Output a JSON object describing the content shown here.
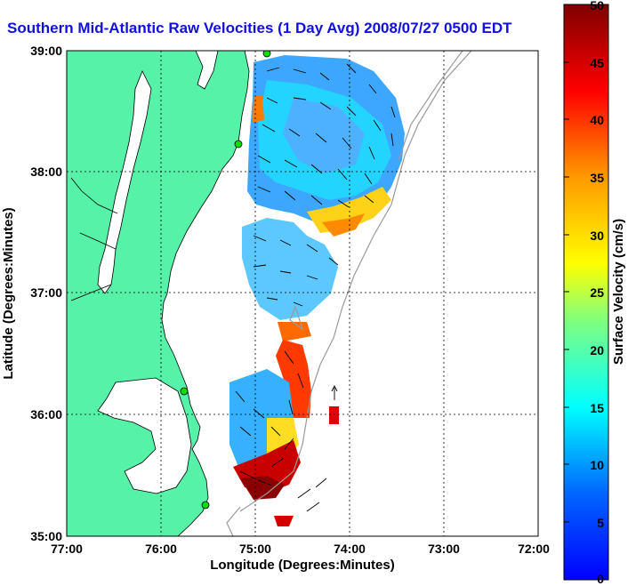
{
  "title": "Southern Mid-Atlantic Raw Velocities (1 Day Avg) 2008/07/27 0500 EDT",
  "xlabel": "Longitude (Degrees:Minutes)",
  "ylabel": "Latitude (Degrees:Minutes)",
  "colorbar_label": "Surface Velocity (cm/s)",
  "x_ticks": [
    "77:00",
    "76:00",
    "75:00",
    "74:00",
    "73:00",
    "72:00"
  ],
  "y_ticks": [
    "39:00",
    "38:00",
    "37:00",
    "36:00",
    "35:00"
  ],
  "colorbar_ticks": [
    "50",
    "45",
    "40",
    "35",
    "30",
    "25",
    "20",
    "15",
    "10",
    "5",
    "0"
  ],
  "colors": {
    "land": "#55f2a8",
    "title": "#1010e0",
    "grid": "#000000"
  },
  "map_extent": {
    "lon": [
      -77,
      -72
    ],
    "lat": [
      35,
      39
    ]
  },
  "colorbar_range": [
    0,
    50
  ]
}
